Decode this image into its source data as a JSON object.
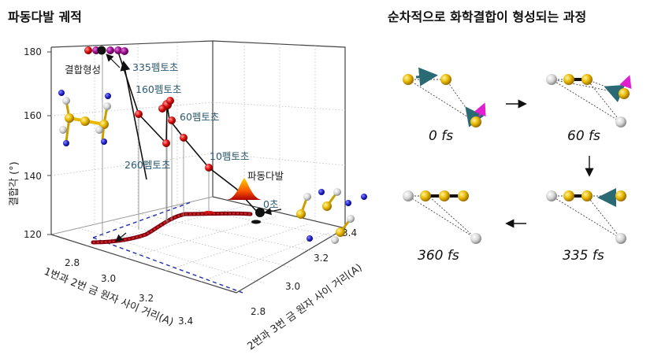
{
  "left_title": "파동다발 궤적",
  "right_title": "순차적으로 화학결합이 형성되는 과정",
  "plot": {
    "z_axis_label": "결합각 (°)",
    "x_axis_label": "1번과 2번 금 원자 사이 거리(A)",
    "y_axis_label": "2번과 3번 금 원자 사이 거리(A)",
    "z_ticks": [
      "120",
      "140",
      "160",
      "180"
    ],
    "x_ticks": [
      "2.8",
      "3.0",
      "3.2",
      "3.4"
    ],
    "y_ticks": [
      "2.8",
      "3.0",
      "3.2",
      "3.4"
    ],
    "annotations": {
      "t335": "335펨토초",
      "t160": "160펨토초",
      "t60": "60펨토초",
      "t260": "260펨토초",
      "t10": "10펨토초",
      "wavepacket": "파동다발",
      "t0": "0초",
      "bond": "결합형성"
    }
  },
  "frames": {
    "f0": "0 fs",
    "f60": "60 fs",
    "f335": "335 fs",
    "f360": "360 fs"
  },
  "colors": {
    "gold_atom": "#e8b800",
    "white_atom": "#d4d4d4",
    "blue_atom": "#2222cc",
    "trajectory": "#cc1010",
    "arrow_teal": "#2a6a74",
    "arrow_magenta": "#e020d0"
  }
}
